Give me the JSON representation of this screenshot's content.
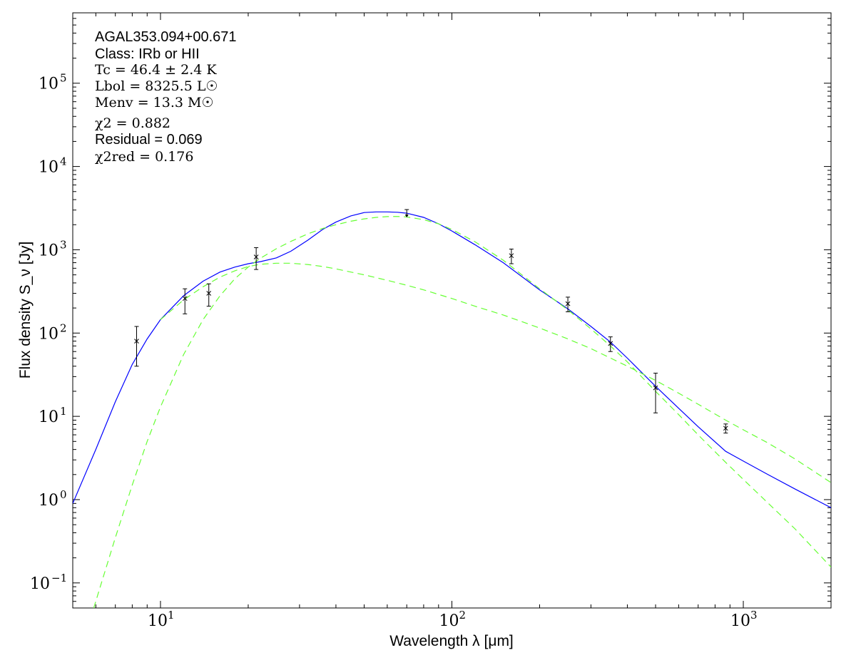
{
  "chart_data": {
    "type": "scatter",
    "source_id": "AGAL353.094+00.671",
    "xlabel": "Wavelength λ [μm]",
    "ylabel": "Flux density S_ν [Jy]",
    "x_scale": "log",
    "y_scale": "log",
    "xlim": [
      5,
      2000
    ],
    "ylim": [
      0.05,
      700000
    ],
    "x_ticks": [
      {
        "value": 10,
        "base": "10",
        "exp": "1"
      },
      {
        "value": 100,
        "base": "10",
        "exp": "2"
      },
      {
        "value": 1000,
        "base": "10",
        "exp": "3"
      }
    ],
    "y_ticks": [
      {
        "value": 0.1,
        "base": "10",
        "exp": "−1"
      },
      {
        "value": 1,
        "base": "10",
        "exp": "0"
      },
      {
        "value": 10,
        "base": "10",
        "exp": "1"
      },
      {
        "value": 100,
        "base": "10",
        "exp": "2"
      },
      {
        "value": 1000,
        "base": "10",
        "exp": "3"
      },
      {
        "value": 10000,
        "base": "10",
        "exp": "4"
      },
      {
        "value": 100000,
        "base": "10",
        "exp": "5"
      }
    ],
    "annotations": {
      "source": "AGAL353.094+00.671",
      "class": "Class: IRb or HII",
      "tc": "Tc = 46.4 ± 2.4 K",
      "lbol": "Lbol = 8325.5 L☉",
      "menv": "Menv = 13.3 M☉",
      "chi2": "χ2 = 0.882",
      "residual": "Residual = 0.069",
      "chi2red": "χ2red = 0.176"
    },
    "points": [
      {
        "x": 8.28,
        "y": 80,
        "err_low": 40,
        "err_high": 120
      },
      {
        "x": 12.13,
        "y": 260,
        "err_low": 170,
        "err_high": 340
      },
      {
        "x": 14.65,
        "y": 300,
        "err_low": 210,
        "err_high": 390
      },
      {
        "x": 21.3,
        "y": 820,
        "err_low": 580,
        "err_high": 1060
      },
      {
        "x": 160,
        "y": 850,
        "err_low": 680,
        "err_high": 1020
      },
      {
        "x": 250,
        "y": 225,
        "err_low": 180,
        "err_high": 270
      },
      {
        "x": 350,
        "y": 75,
        "err_low": 60,
        "err_high": 90
      },
      {
        "x": 500,
        "y": 22,
        "err_low": 11,
        "err_high": 33
      },
      {
        "x": 870,
        "y": 7.2,
        "err_low": 6.3,
        "err_high": 8.1
      }
    ],
    "upper_limits": [
      {
        "x": 70,
        "y": 2700
      }
    ],
    "series": [
      {
        "style": "solid",
        "color": "#0000ff",
        "x": [
          5,
          6,
          7,
          8,
          9,
          10,
          12,
          14,
          16,
          18,
          20,
          22,
          25,
          28,
          32,
          36,
          40,
          45,
          50,
          55,
          60,
          65,
          70,
          80,
          90,
          100,
          120,
          150,
          200,
          250,
          300,
          350,
          400,
          500,
          600,
          700,
          870,
          1000,
          1200,
          1500,
          2000
        ],
        "y": [
          0.9,
          4,
          15,
          42,
          85,
          145,
          280,
          420,
          540,
          620,
          680,
          720,
          800,
          960,
          1300,
          1750,
          2150,
          2550,
          2800,
          2850,
          2850,
          2820,
          2750,
          2450,
          2050,
          1680,
          1150,
          700,
          330,
          195,
          120,
          78,
          50,
          23,
          12.5,
          7.5,
          3.8,
          2.9,
          2.05,
          1.35,
          0.8
        ]
      },
      {
        "style": "dashed",
        "color": "#66ff33",
        "x": [
          5.9,
          6.5,
          7,
          8,
          9,
          10,
          12,
          14,
          16,
          18,
          20,
          22,
          25,
          28,
          32,
          36,
          40,
          45,
          50,
          55,
          60,
          65,
          70,
          80,
          90,
          100,
          120,
          150,
          200,
          250,
          300,
          350,
          400,
          500,
          600,
          700,
          870,
          1000,
          1200,
          1500,
          2000
        ],
        "y": [
          0.05,
          0.15,
          0.35,
          1.5,
          5,
          13,
          55,
          145,
          280,
          450,
          620,
          790,
          1030,
          1260,
          1550,
          1800,
          2000,
          2200,
          2350,
          2450,
          2500,
          2510,
          2480,
          2300,
          2050,
          1750,
          1250,
          750,
          340,
          190,
          112,
          70,
          45,
          20,
          10.5,
          6,
          2.8,
          1.75,
          0.95,
          0.45,
          0.155
        ]
      },
      {
        "style": "dashed",
        "color": "#66ff33",
        "x": [
          10,
          12,
          14,
          16,
          18,
          20,
          22,
          25,
          28,
          32,
          36,
          40,
          45,
          50,
          60,
          70,
          80,
          100,
          120,
          150,
          200,
          250,
          300,
          400,
          500,
          600,
          700,
          870,
          1000,
          1200,
          1500,
          2000
        ],
        "y": [
          145,
          250,
          360,
          470,
          560,
          630,
          670,
          690,
          690,
          665,
          630,
          590,
          540,
          500,
          430,
          375,
          330,
          260,
          210,
          165,
          115,
          85,
          65,
          40,
          27,
          19,
          14,
          9,
          6.9,
          4.9,
          3.1,
          1.6
        ]
      }
    ]
  }
}
